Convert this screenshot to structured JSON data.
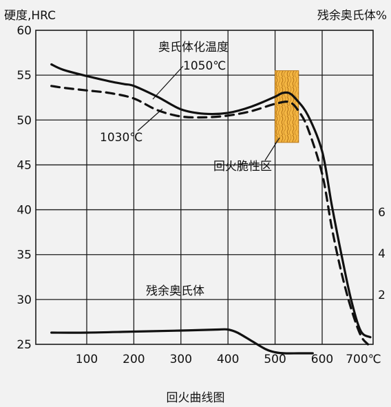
{
  "chart_data": {
    "type": "line",
    "title": "回火曲线图",
    "ylabel_left": "硬度,HRC",
    "ylabel_right": "残余奥氏体%",
    "xlabel": "",
    "x_unit": "℃",
    "xlim": [
      0,
      700
    ],
    "ylim": [
      25,
      60
    ],
    "ylim_right": [
      0,
      10
    ],
    "x_ticks": [
      {
        "value": 100,
        "label": "100"
      },
      {
        "value": 200,
        "label": "200"
      },
      {
        "value": 300,
        "label": "300"
      },
      {
        "value": 400,
        "label": "400"
      },
      {
        "value": 500,
        "label": "500"
      },
      {
        "value": 600,
        "label": "600"
      },
      {
        "value": 700,
        "label": "700℃"
      }
    ],
    "y_ticks": [
      {
        "value": 25,
        "label": "25"
      },
      {
        "value": 30,
        "label": "30"
      },
      {
        "value": 35,
        "label": "35"
      },
      {
        "value": 40,
        "label": "40"
      },
      {
        "value": 45,
        "label": "45"
      },
      {
        "value": 50,
        "label": "50"
      },
      {
        "value": 55,
        "label": "55"
      },
      {
        "value": 60,
        "label": "60"
      }
    ],
    "y_ticks_right": [
      {
        "value": 2,
        "label": "2"
      },
      {
        "value": 4,
        "label": "4"
      },
      {
        "value": 6,
        "label": "6"
      }
    ],
    "grid": true,
    "legend_title": "奥氏体化温度",
    "series": [
      {
        "name": "1050℃",
        "style": "solid",
        "axis": "left",
        "x": [
          25,
          50,
          100,
          150,
          180,
          200,
          250,
          300,
          350,
          400,
          450,
          500,
          515,
          530,
          545,
          570,
          600,
          620,
          640,
          660,
          680,
          700
        ],
        "y": [
          56.2,
          55.6,
          54.9,
          54.3,
          54.0,
          53.8,
          52.6,
          51.2,
          50.7,
          50.8,
          51.5,
          52.6,
          53.0,
          53.0,
          52.3,
          50.5,
          46.5,
          40.5,
          35.0,
          30.0,
          26.5,
          25.8
        ]
      },
      {
        "name": "1030℃",
        "style": "dashed",
        "axis": "left",
        "x": [
          25,
          50,
          100,
          150,
          200,
          250,
          300,
          350,
          400,
          450,
          500,
          530,
          550,
          570,
          600,
          620,
          640,
          660,
          680,
          695
        ],
        "y": [
          53.8,
          53.6,
          53.3,
          53.0,
          52.4,
          51.1,
          50.4,
          50.3,
          50.5,
          51.0,
          51.8,
          52.0,
          51.0,
          49.0,
          44.0,
          38.0,
          33.0,
          29.0,
          26.0,
          25.0
        ]
      },
      {
        "name": "残余奥氏体",
        "style": "solid",
        "axis": "right",
        "x": [
          25,
          100,
          200,
          300,
          380,
          400,
          420,
          450,
          480,
          500,
          520,
          550,
          580
        ],
        "y": [
          1.0,
          1.0,
          1.05,
          1.1,
          1.15,
          1.15,
          1.0,
          0.6,
          0.2,
          0.05,
          0.0,
          0.0,
          0.0
        ]
      }
    ],
    "annotations": {
      "legend_title": "奥氏体化温度",
      "label_1050": "1050℃",
      "label_1030": "1030℃",
      "brittle_zone": "回火脆性区",
      "retained_austenite": "残余奥氏体"
    },
    "brittle_zone_range": [
      500,
      550
    ],
    "brittle_zone_y": [
      47.5,
      55.5
    ],
    "colors": {
      "background": "#f2f2f2",
      "line": "#111111",
      "brittle_fill": "#f4b642",
      "brittle_stroke": "#b8771a"
    }
  }
}
